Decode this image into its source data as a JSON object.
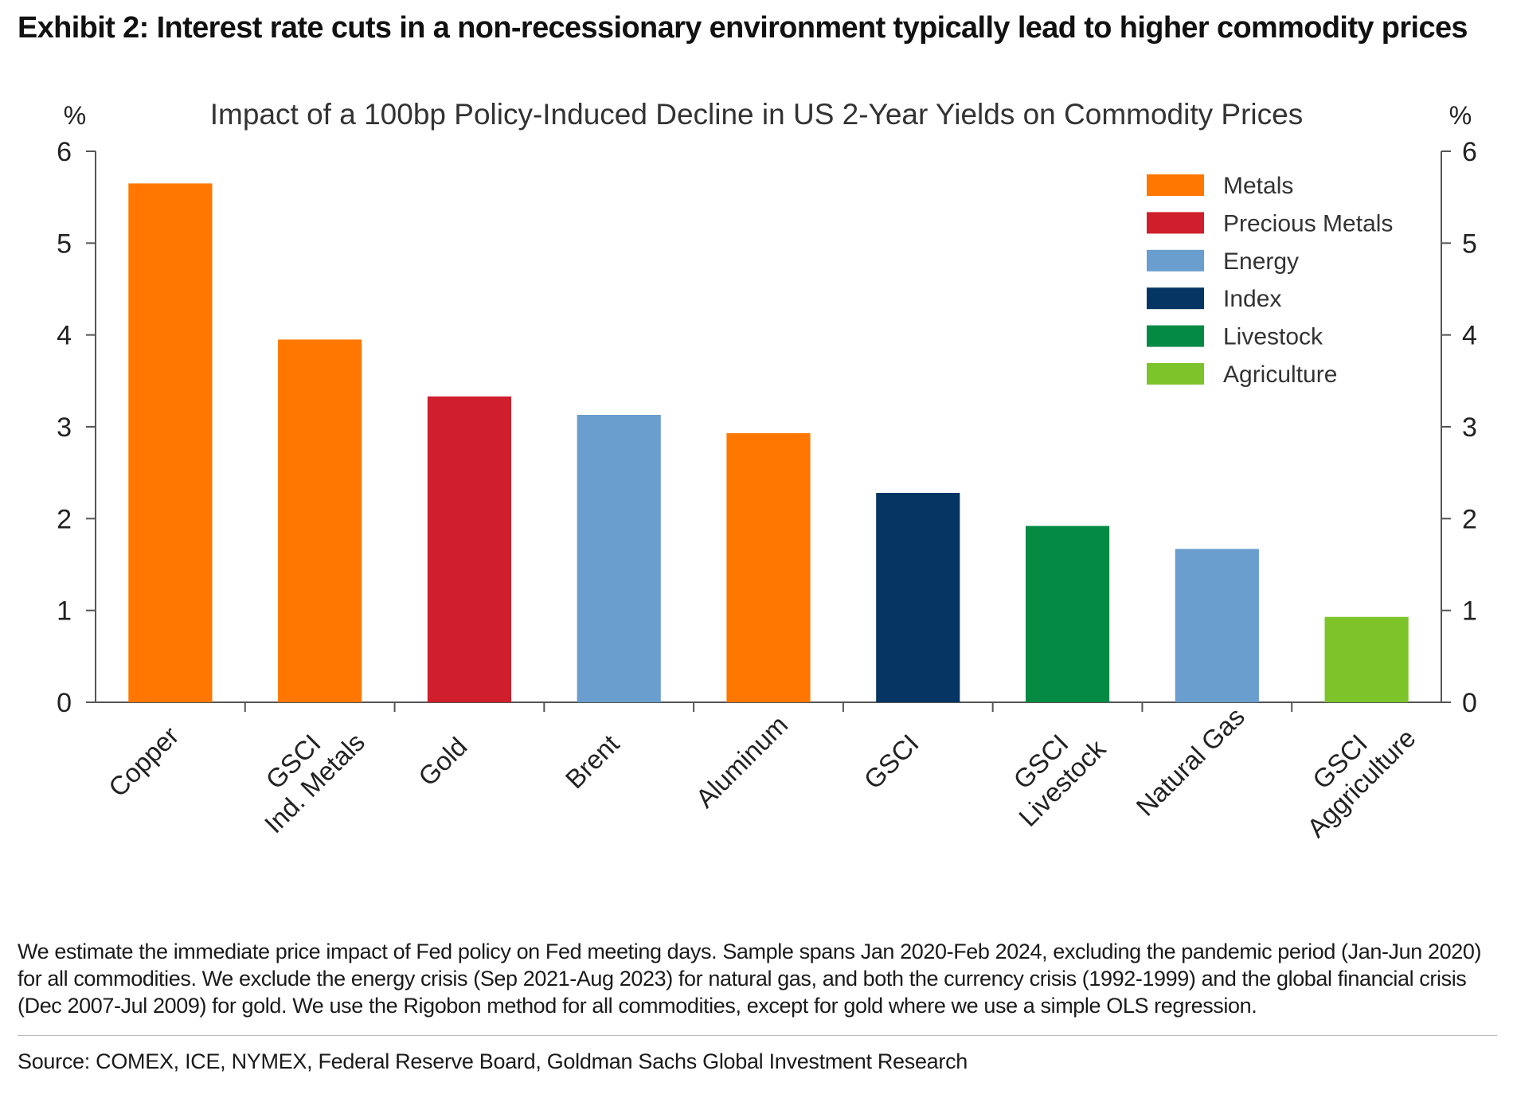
{
  "exhibit_title": "Exhibit 2: Interest rate cuts in a non-recessionary environment typically lead to higher commodity prices",
  "footnote": "We estimate the immediate price impact of Fed policy on Fed meeting days. Sample spans Jan 2020-Feb 2024, excluding the pandemic period (Jan-Jun 2020) for all commodities. We exclude the energy crisis (Sep 2021-Aug 2023) for natural gas, and both the currency crisis (1992-1999) and the global financial crisis (Dec 2007-Jul 2009) for gold. We use the Rigobon method for all commodities, except for gold where we use a simple OLS regression.",
  "source": "Source: COMEX, ICE, NYMEX, Federal Reserve Board, Goldman Sachs Global Investment Research",
  "chart_data": {
    "type": "bar",
    "title": "Impact of a 100bp Policy-Induced Decline in US 2-Year Yields on Commodity Prices",
    "ylabel_left": "%",
    "ylabel_right": "%",
    "ylim": [
      0,
      6
    ],
    "yticks": [
      0,
      1,
      2,
      3,
      4,
      5,
      6
    ],
    "grid": false,
    "legend_position": "top-right",
    "categories": [
      "Copper",
      "GSCI\nInd. Metals",
      "Gold",
      "Brent",
      "Aluminum",
      "GSCI",
      "GSCI\nLivestock",
      "Natural Gas",
      "GSCI\nAggriculture"
    ],
    "values": [
      5.65,
      3.95,
      3.33,
      3.13,
      2.93,
      2.28,
      1.92,
      1.67,
      0.93
    ],
    "bar_groups": [
      "Metals",
      "Metals",
      "Precious Metals",
      "Energy",
      "Metals",
      "Index",
      "Livestock",
      "Energy",
      "Agriculture"
    ],
    "legend": [
      {
        "name": "Metals",
        "color": "#FF7700"
      },
      {
        "name": "Precious Metals",
        "color": "#D01E2C"
      },
      {
        "name": "Energy",
        "color": "#6A9ECE"
      },
      {
        "name": "Index",
        "color": "#053562"
      },
      {
        "name": "Livestock",
        "color": "#048A43"
      },
      {
        "name": "Agriculture",
        "color": "#7DC42B"
      }
    ]
  }
}
